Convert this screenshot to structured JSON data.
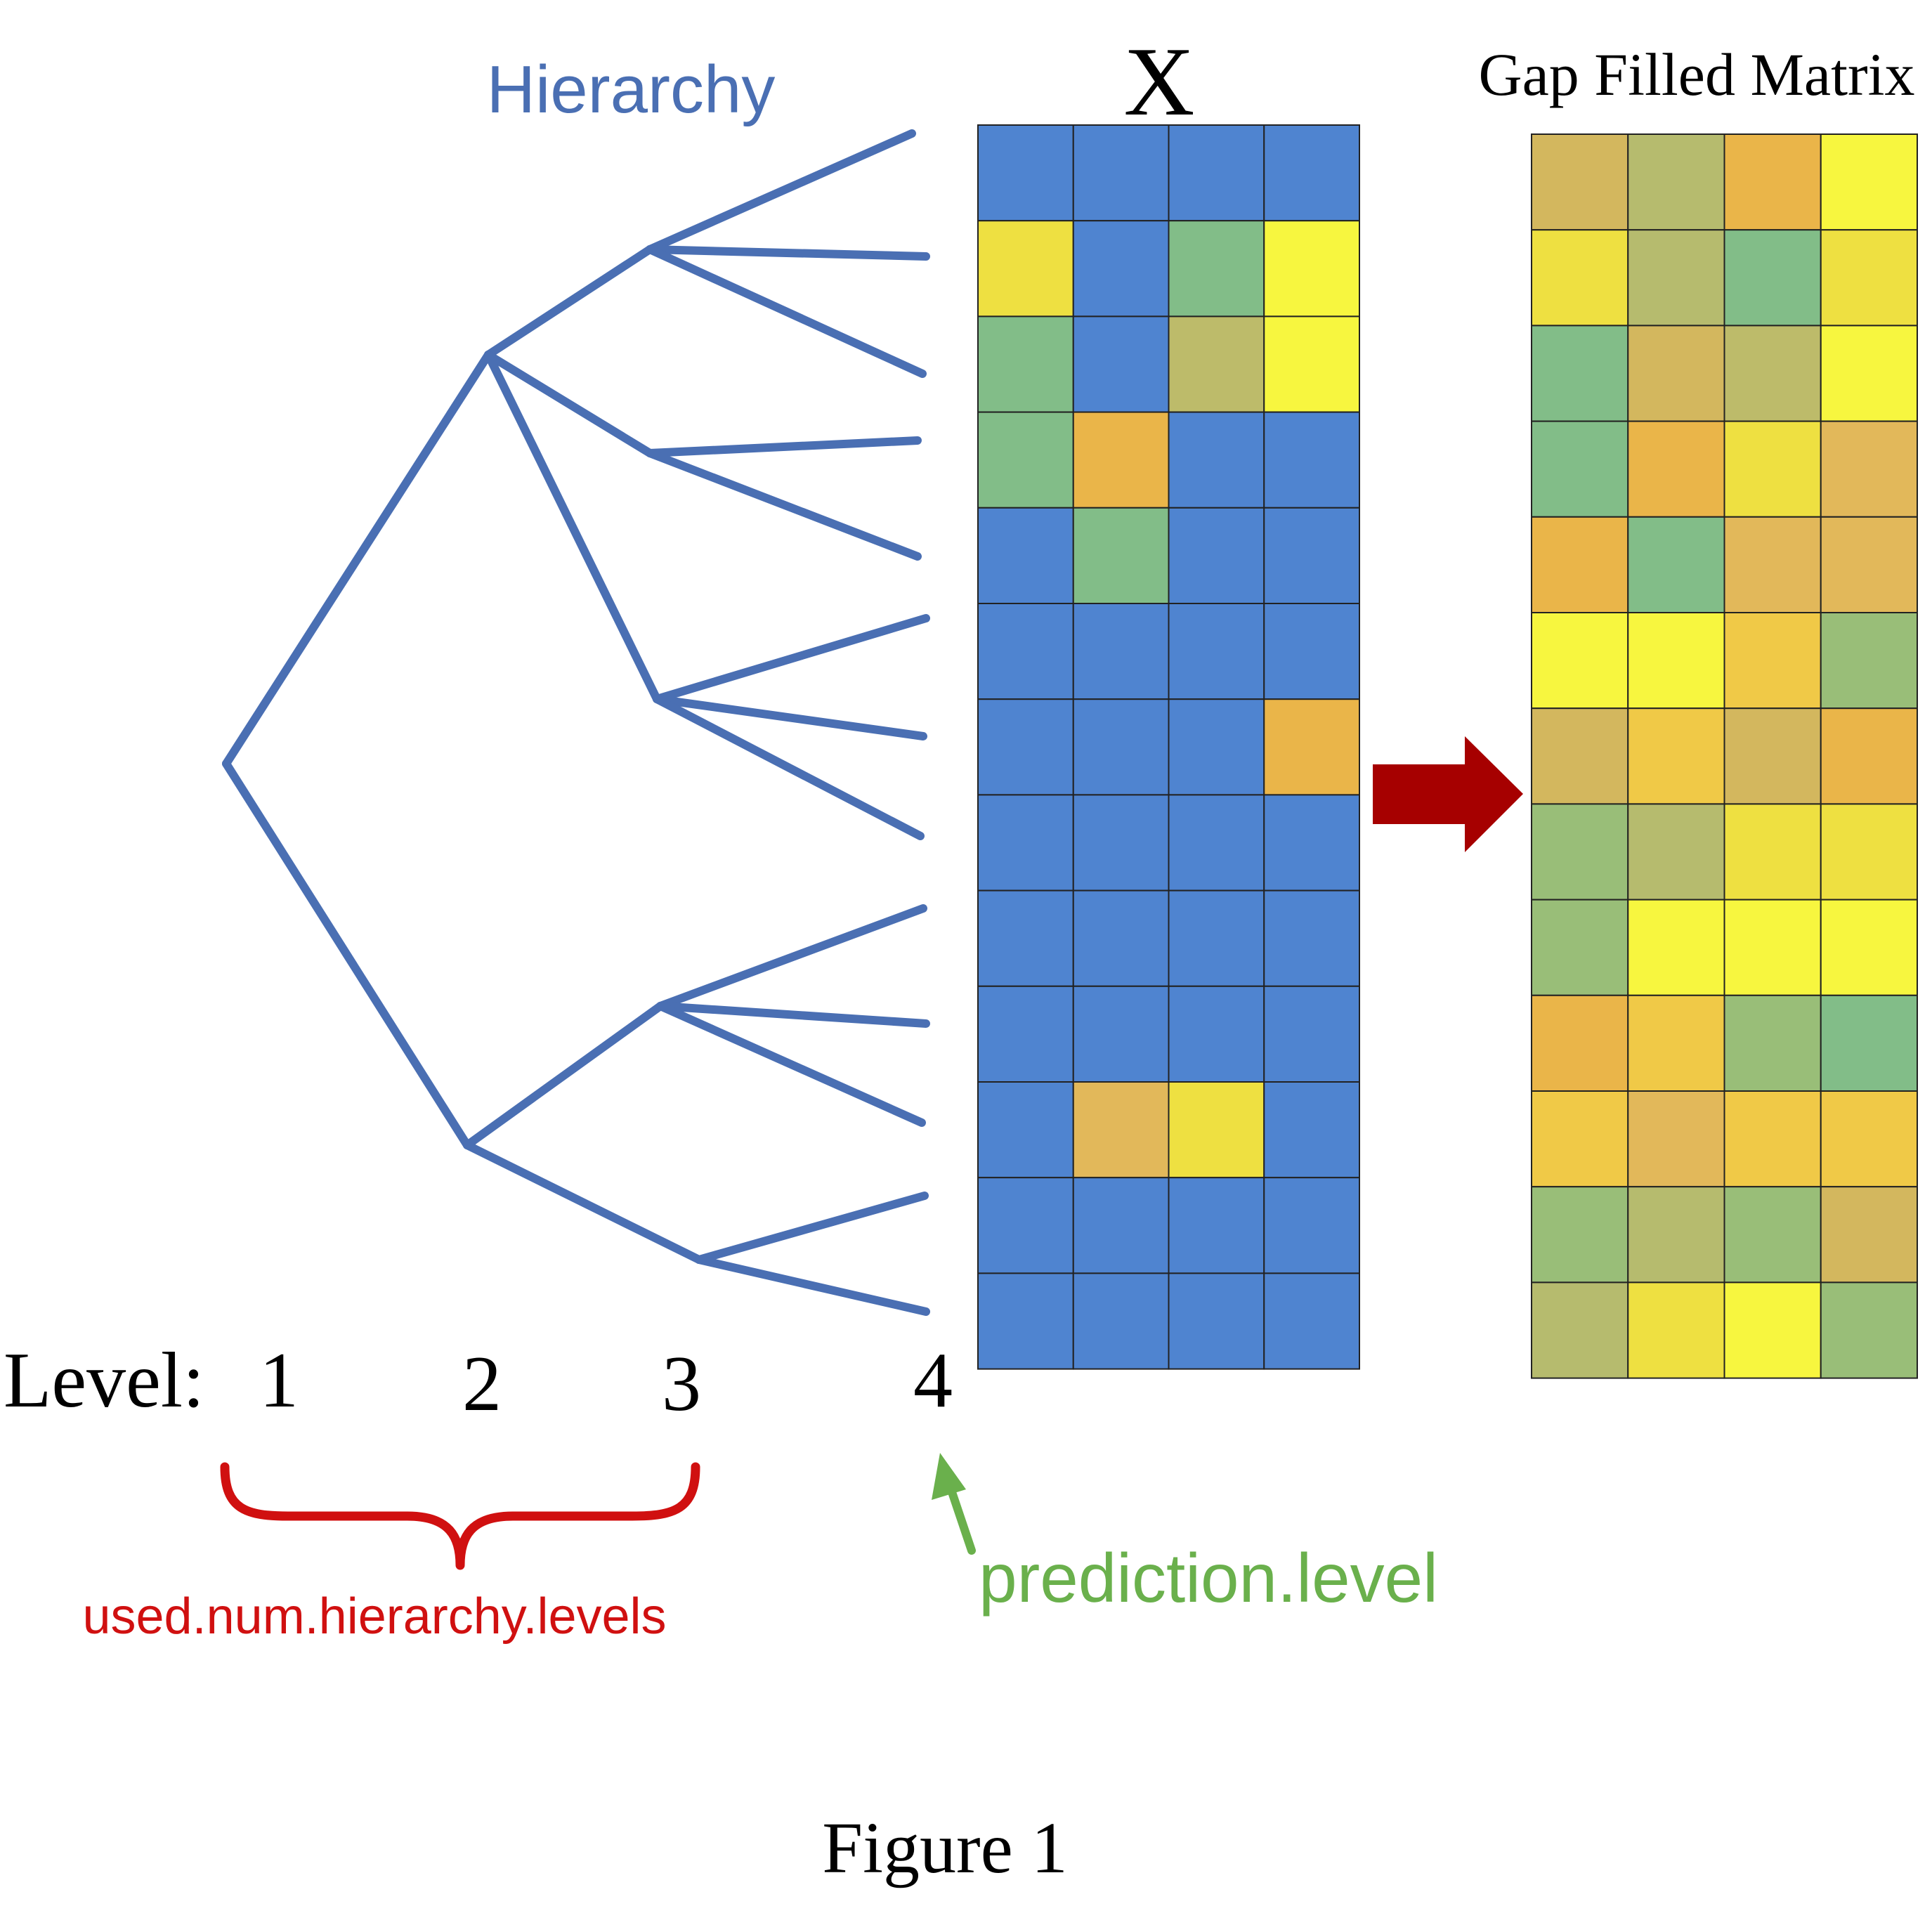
{
  "labels": {
    "hierarchy_title": "Hierarchy",
    "matrix_x_title": "X",
    "gap_filled_title": "Gap Filled Matrix",
    "level_prefix": "Level:",
    "levels": [
      "1",
      "2",
      "3",
      "4"
    ],
    "used_levels_label": "used.num.hierarchy.levels",
    "prediction_level_label": "prediction.level",
    "figure_caption": "Figure 1"
  },
  "colors": {
    "hierarchy_blue": "#4a6fb3",
    "missing_blue": "#4f84d0",
    "cell_border": "#222222",
    "arrow_red": "#a60000",
    "brace_red": "#d01010",
    "label_green": "#6ab04c",
    "text_black": "#000000"
  },
  "palette": {
    "B": "#4f84d0",
    "Y": "#f7f63f",
    "y": "#eee041",
    "g": "#82bd88",
    "v": "#99be78",
    "k": "#bdbb6a",
    "s": "#b6bb6e",
    "o": "#eab549",
    "O": "#f0c947",
    "t": "#d3b75e",
    "d": "#e2b85a"
  },
  "matrix_x": [
    [
      "B",
      "B",
      "B",
      "B"
    ],
    [
      "y",
      "B",
      "g",
      "Y"
    ],
    [
      "g",
      "B",
      "k",
      "Y"
    ],
    [
      "g",
      "o",
      "B",
      "B"
    ],
    [
      "B",
      "g",
      "B",
      "B"
    ],
    [
      "B",
      "B",
      "B",
      "B"
    ],
    [
      "B",
      "B",
      "B",
      "o"
    ],
    [
      "B",
      "B",
      "B",
      "B"
    ],
    [
      "B",
      "B",
      "B",
      "B"
    ],
    [
      "B",
      "B",
      "B",
      "B"
    ],
    [
      "B",
      "d",
      "y",
      "B"
    ],
    [
      "B",
      "B",
      "B",
      "B"
    ],
    [
      "B",
      "B",
      "B",
      "B"
    ]
  ],
  "gap_filled_matrix": [
    [
      "t",
      "s",
      "o",
      "Y"
    ],
    [
      "y",
      "s",
      "g",
      "y"
    ],
    [
      "g",
      "t",
      "k",
      "Y"
    ],
    [
      "g",
      "o",
      "y",
      "d"
    ],
    [
      "o",
      "g",
      "d",
      "d"
    ],
    [
      "Y",
      "Y",
      "O",
      "v"
    ],
    [
      "t",
      "O",
      "t",
      "o"
    ],
    [
      "v",
      "s",
      "y",
      "y"
    ],
    [
      "v",
      "Y",
      "Y",
      "Y"
    ],
    [
      "o",
      "O",
      "v",
      "g"
    ],
    [
      "O",
      "d",
      "O",
      "O"
    ],
    [
      "v",
      "s",
      "v",
      "t"
    ],
    [
      "s",
      "y",
      "Y",
      "v"
    ]
  ]
}
